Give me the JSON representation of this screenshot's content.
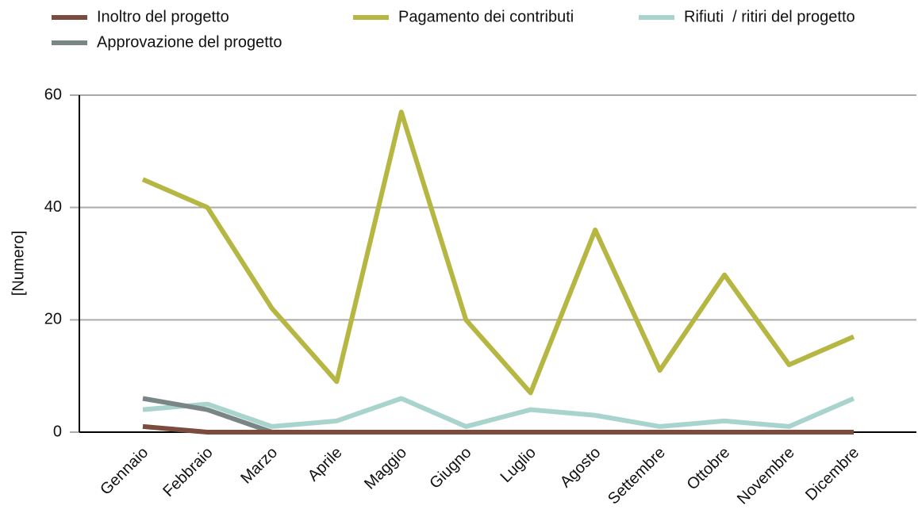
{
  "chart_data": {
    "type": "line",
    "y_label": "[Numero]",
    "categories": [
      "Gennaio",
      "Febbraio",
      "Marzo",
      "Aprile",
      "Maggio",
      "Giugno",
      "Luglio",
      "Agosto",
      "Settembre",
      "Ottobre",
      "Novembre",
      "Dicembre"
    ],
    "series": [
      {
        "name": "Inoltro del progetto",
        "color": "#7b4b3d",
        "values": [
          1,
          0,
          0,
          0,
          0,
          0,
          0,
          0,
          0,
          0,
          0,
          0
        ]
      },
      {
        "name": "Approvazione del progetto",
        "color": "#7a8585",
        "values": [
          6,
          4,
          0,
          0,
          0,
          0,
          0,
          0,
          0,
          0,
          0,
          0
        ]
      },
      {
        "name": "Pagamento dei contributi",
        "color": "#b6b643",
        "values": [
          45,
          40,
          22,
          9,
          57,
          20,
          7,
          36,
          11,
          28,
          12,
          17
        ]
      },
      {
        "name": "Rifiuti  / ritiri del progetto",
        "color": "#a8d4cd",
        "values": [
          4,
          5,
          1,
          2,
          6,
          1,
          4,
          3,
          1,
          2,
          1,
          6
        ]
      }
    ],
    "ylim": [
      0,
      60
    ],
    "yticks": [
      0,
      20,
      40,
      60
    ],
    "grid": true
  }
}
